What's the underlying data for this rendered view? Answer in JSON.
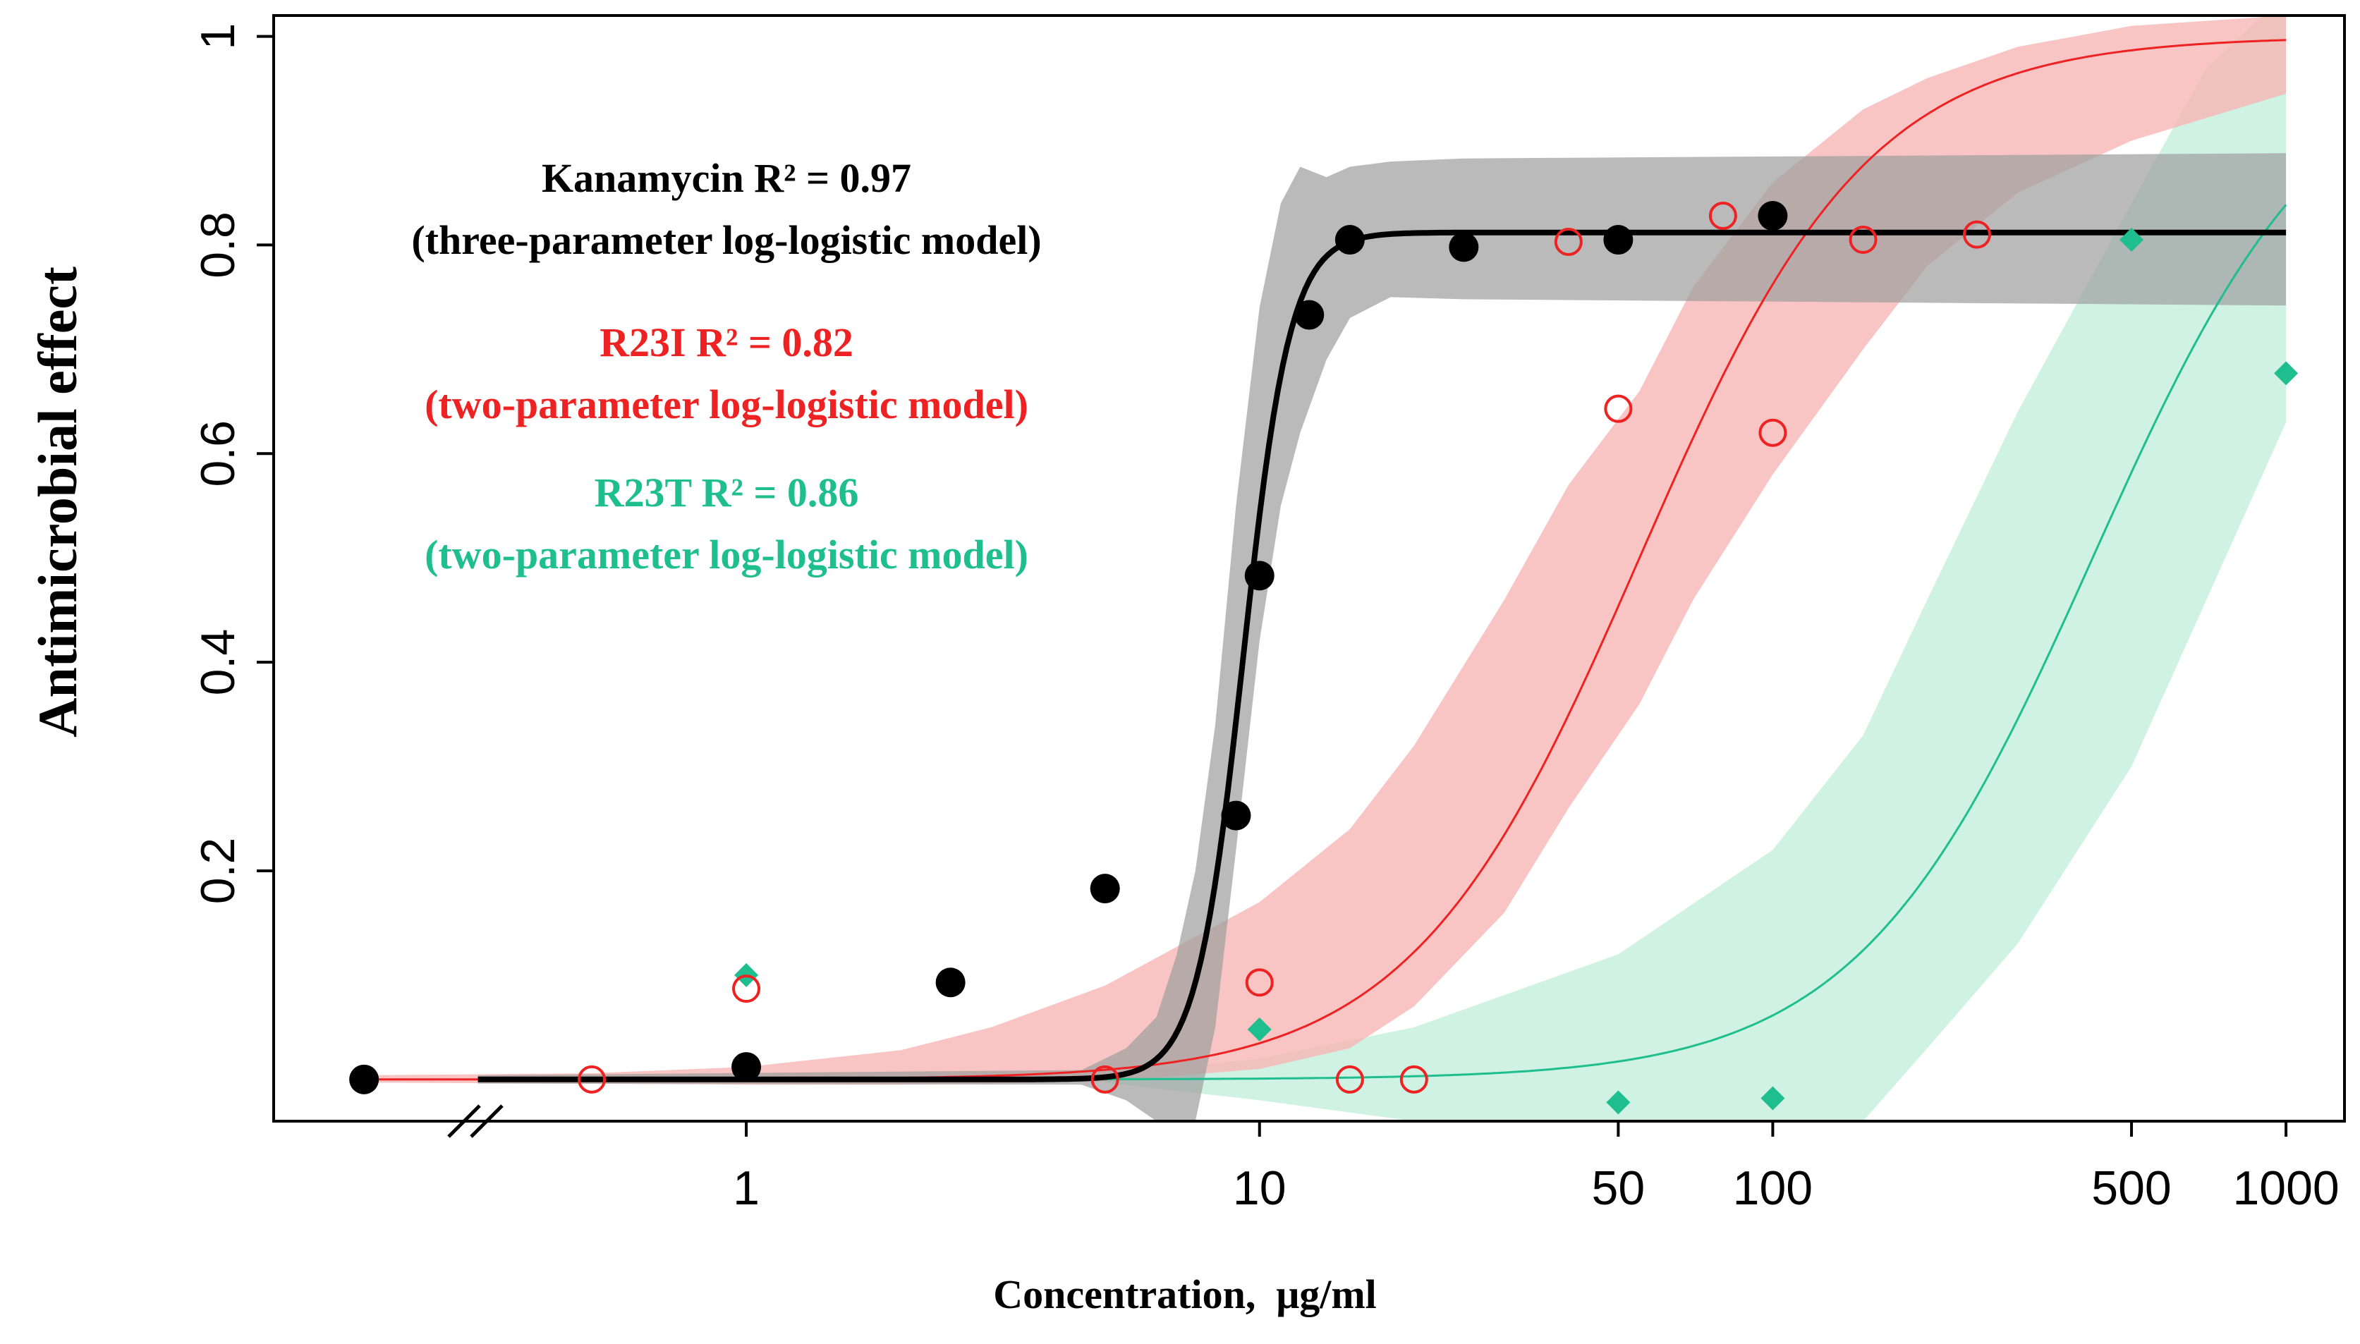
{
  "chart_data": {
    "type": "scatter",
    "xlabel": "Concentration,  μg/ml",
    "ylabel": "Antimicrobial effect",
    "x_scale": "log",
    "xlim": [
      0.12,
      1300
    ],
    "ylim": [
      -0.04,
      1.02
    ],
    "x_ticks": [
      1,
      10,
      50,
      100,
      500,
      1000
    ],
    "x_tick_labels": [
      "1",
      "10",
      "50",
      "100",
      "500",
      "1000"
    ],
    "y_ticks": [
      0.2,
      0.4,
      0.6,
      0.8,
      1.0
    ],
    "y_tick_labels": [
      "0.2",
      "0.4",
      "0.6",
      "0.8",
      "1"
    ],
    "zero_dose_x": 0.18,
    "axis_break": "//",
    "series": [
      {
        "name": "Kanamycin",
        "color": "#000000",
        "band_color": "#a0a0a0",
        "marker": "filled-circle",
        "model": "three-parameter log-logistic model",
        "r2_label": "Kanamycin R² = 0.97",
        "model_label": "(three-parameter log-logistic model)",
        "fit": {
          "lower": 0.0,
          "upper": 0.812,
          "ec50": 9.3,
          "slope": 9.5
        },
        "curve_x_range": [
          0.3,
          1000
        ],
        "band": [
          {
            "x": 0.3,
            "lo": -0.004,
            "hi": 0.004
          },
          {
            "x": 4.5,
            "lo": -0.005,
            "hi": 0.009
          },
          {
            "x": 5.5,
            "lo": -0.02,
            "hi": 0.03
          },
          {
            "x": 6.3,
            "lo": -0.04,
            "hi": 0.06
          },
          {
            "x": 6.9,
            "lo": -0.04,
            "hi": 0.12
          },
          {
            "x": 7.5,
            "lo": -0.04,
            "hi": 0.2
          },
          {
            "x": 8.2,
            "lo": 0.05,
            "hi": 0.34
          },
          {
            "x": 9.0,
            "lo": 0.22,
            "hi": 0.55
          },
          {
            "x": 10.0,
            "lo": 0.42,
            "hi": 0.74
          },
          {
            "x": 11.0,
            "lo": 0.55,
            "hi": 0.84
          },
          {
            "x": 12.0,
            "lo": 0.62,
            "hi": 0.875
          },
          {
            "x": 13.5,
            "lo": 0.69,
            "hi": 0.865
          },
          {
            "x": 15.0,
            "lo": 0.73,
            "hi": 0.875
          },
          {
            "x": 18.0,
            "lo": 0.75,
            "hi": 0.88
          },
          {
            "x": 25.0,
            "lo": 0.748,
            "hi": 0.883
          },
          {
            "x": 1000,
            "lo": 0.742,
            "hi": 0.888
          }
        ],
        "points": [
          {
            "x": 0.18,
            "y": 0.0
          },
          {
            "x": 1,
            "y": 0.012
          },
          {
            "x": 2.5,
            "y": 0.093
          },
          {
            "x": 5,
            "y": 0.183
          },
          {
            "x": 9,
            "y": 0.253
          },
          {
            "x": 10,
            "y": 0.483
          },
          {
            "x": 12.5,
            "y": 0.733
          },
          {
            "x": 15,
            "y": 0.805
          },
          {
            "x": 25,
            "y": 0.798
          },
          {
            "x": 50,
            "y": 0.805
          },
          {
            "x": 100,
            "y": 0.828
          }
        ]
      },
      {
        "name": "R23I",
        "color": "#ee2222",
        "band_color": "#f7b5b3",
        "marker": "open-circle",
        "model": "two-parameter log-logistic model",
        "r2_label": "R23I R² = 0.82",
        "model_label": "(two-parameter log-logistic model)",
        "fit": {
          "lower": 0.0,
          "upper": 1.0,
          "ec50": 55,
          "slope": 1.95
        },
        "curve_x_range": [
          0.18,
          1000
        ],
        "band": [
          {
            "x": 0.18,
            "lo": -0.003,
            "hi": 0.004
          },
          {
            "x": 0.5,
            "lo": -0.004,
            "hi": 0.006
          },
          {
            "x": 1,
            "lo": -0.005,
            "hi": 0.012
          },
          {
            "x": 2,
            "lo": -0.005,
            "hi": 0.028
          },
          {
            "x": 3,
            "lo": -0.004,
            "hi": 0.05
          },
          {
            "x": 5,
            "lo": -0.002,
            "hi": 0.09
          },
          {
            "x": 10,
            "lo": 0.01,
            "hi": 0.17
          },
          {
            "x": 15,
            "lo": 0.03,
            "hi": 0.24
          },
          {
            "x": 20,
            "lo": 0.07,
            "hi": 0.32
          },
          {
            "x": 30,
            "lo": 0.16,
            "hi": 0.46
          },
          {
            "x": 40,
            "lo": 0.26,
            "hi": 0.57
          },
          {
            "x": 55,
            "lo": 0.36,
            "hi": 0.66
          },
          {
            "x": 70,
            "lo": 0.46,
            "hi": 0.76
          },
          {
            "x": 100,
            "lo": 0.58,
            "hi": 0.86
          },
          {
            "x": 150,
            "lo": 0.7,
            "hi": 0.93
          },
          {
            "x": 200,
            "lo": 0.78,
            "hi": 0.96
          },
          {
            "x": 300,
            "lo": 0.85,
            "hi": 0.99
          },
          {
            "x": 500,
            "lo": 0.9,
            "hi": 1.01
          },
          {
            "x": 1000,
            "lo": 0.945,
            "hi": 1.02
          }
        ],
        "points": [
          {
            "x": 0.18,
            "y": 0.0
          },
          {
            "x": 0.5,
            "y": 0.0
          },
          {
            "x": 1,
            "y": 0.087
          },
          {
            "x": 5,
            "y": 0.0
          },
          {
            "x": 10,
            "y": 0.093
          },
          {
            "x": 15,
            "y": 0.0
          },
          {
            "x": 20,
            "y": 0.0
          },
          {
            "x": 40,
            "y": 0.803
          },
          {
            "x": 50,
            "y": 0.643
          },
          {
            "x": 80,
            "y": 0.828
          },
          {
            "x": 100,
            "y": 0.62
          },
          {
            "x": 150,
            "y": 0.805
          },
          {
            "x": 250,
            "y": 0.81
          }
        ]
      },
      {
        "name": "R23T",
        "color": "#1fbe8e",
        "band_color": "#c2eedd",
        "marker": "filled-diamond",
        "model": "two-parameter log-logistic model",
        "r2_label": "R23T R² = 0.86",
        "model_label": "(two-parameter log-logistic model)",
        "fit": {
          "lower": 0.0,
          "upper": 1.0,
          "ec50": 420,
          "slope": 1.9
        },
        "curve_x_range": [
          0.3,
          1000
        ],
        "band": [
          {
            "x": 5,
            "lo": -0.003,
            "hi": 0.004
          },
          {
            "x": 10,
            "lo": -0.02,
            "hi": 0.02
          },
          {
            "x": 20,
            "lo": -0.04,
            "hi": 0.05
          },
          {
            "x": 50,
            "lo": -0.04,
            "hi": 0.12
          },
          {
            "x": 100,
            "lo": -0.04,
            "hi": 0.22
          },
          {
            "x": 150,
            "lo": -0.04,
            "hi": 0.33
          },
          {
            "x": 200,
            "lo": 0.03,
            "hi": 0.46
          },
          {
            "x": 300,
            "lo": 0.13,
            "hi": 0.64
          },
          {
            "x": 500,
            "lo": 0.3,
            "hi": 0.84
          },
          {
            "x": 700,
            "lo": 0.46,
            "hi": 0.97
          },
          {
            "x": 1000,
            "lo": 0.63,
            "hi": 1.04
          }
        ],
        "points": [
          {
            "x": 1,
            "y": 0.1
          },
          {
            "x": 10,
            "y": 0.048
          },
          {
            "x": 50,
            "y": -0.022
          },
          {
            "x": 100,
            "y": -0.018
          },
          {
            "x": 500,
            "y": 0.805
          },
          {
            "x": 1000,
            "y": 0.677
          }
        ]
      }
    ]
  }
}
